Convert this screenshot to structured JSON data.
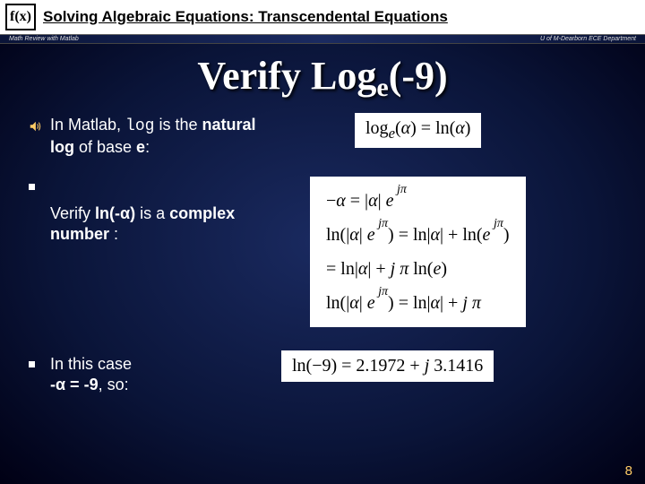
{
  "header": {
    "fx_label": "f(x)",
    "title": "Solving Algebraic Equations: Transcendental Equations",
    "sub_left": "Math Review with Matlab",
    "sub_right": "U of M-Dearborn ECE Department"
  },
  "main_title_html": "Verify Log<sub>e</sub>(-9)",
  "bullets": [
    {
      "marker": "sound",
      "text_html": "In Matlab, <code>log</code> is the <span class='bold'>natural log</span> of base <span class='bold'>e</span>:",
      "formula_html": "log<sub><span class='italic'>e</span></sub>(<span class='italic'>α</span>) = ln(<span class='italic'>α</span>)",
      "formula_class": "fb1"
    },
    {
      "marker": "square",
      "text_html": "Verify <span class='bold'>ln(-α)</span> is a <span class='bold'>complex number</span> :",
      "formula_html": "−<span class='italic'>α</span> = |<span class='italic'>α</span>| <span class='italic'>e</span><sup>&nbsp;<span class='italic'>jπ</span></sup><br>ln(|<span class='italic'>α</span>| <span class='italic'>e</span><sup>&nbsp;<span class='italic'>jπ</span></sup>) = ln|<span class='italic'>α</span>| + ln(<span class='italic'>e</span><sup>&nbsp;<span class='italic'>jπ</span></sup>)<br>= ln|<span class='italic'>α</span>| + <span class='italic'>j π</span> ln(<span class='italic'>e</span>)<br>ln(|<span class='italic'>α</span>| <span class='italic'>e</span><sup>&nbsp;<span class='italic'>jπ</span></sup>) = ln|<span class='italic'>α</span>| + <span class='italic'>j π</span>",
      "formula_class": "fb2",
      "row_class": "row2"
    },
    {
      "marker": "square",
      "text_html": "In this case<br><span class='bold'>-α = -9</span>, so:",
      "formula_html": "ln(−9) = 2.1972 + <span class='italic'>j</span> 3.1416",
      "formula_class": "fb3",
      "row_class": "row3"
    }
  ],
  "page_number": "8",
  "colors": {
    "page_num": "#ffcc66",
    "bg_center": "#1a2a60",
    "bg_edge": "#000014",
    "formula_bg": "#ffffff"
  }
}
